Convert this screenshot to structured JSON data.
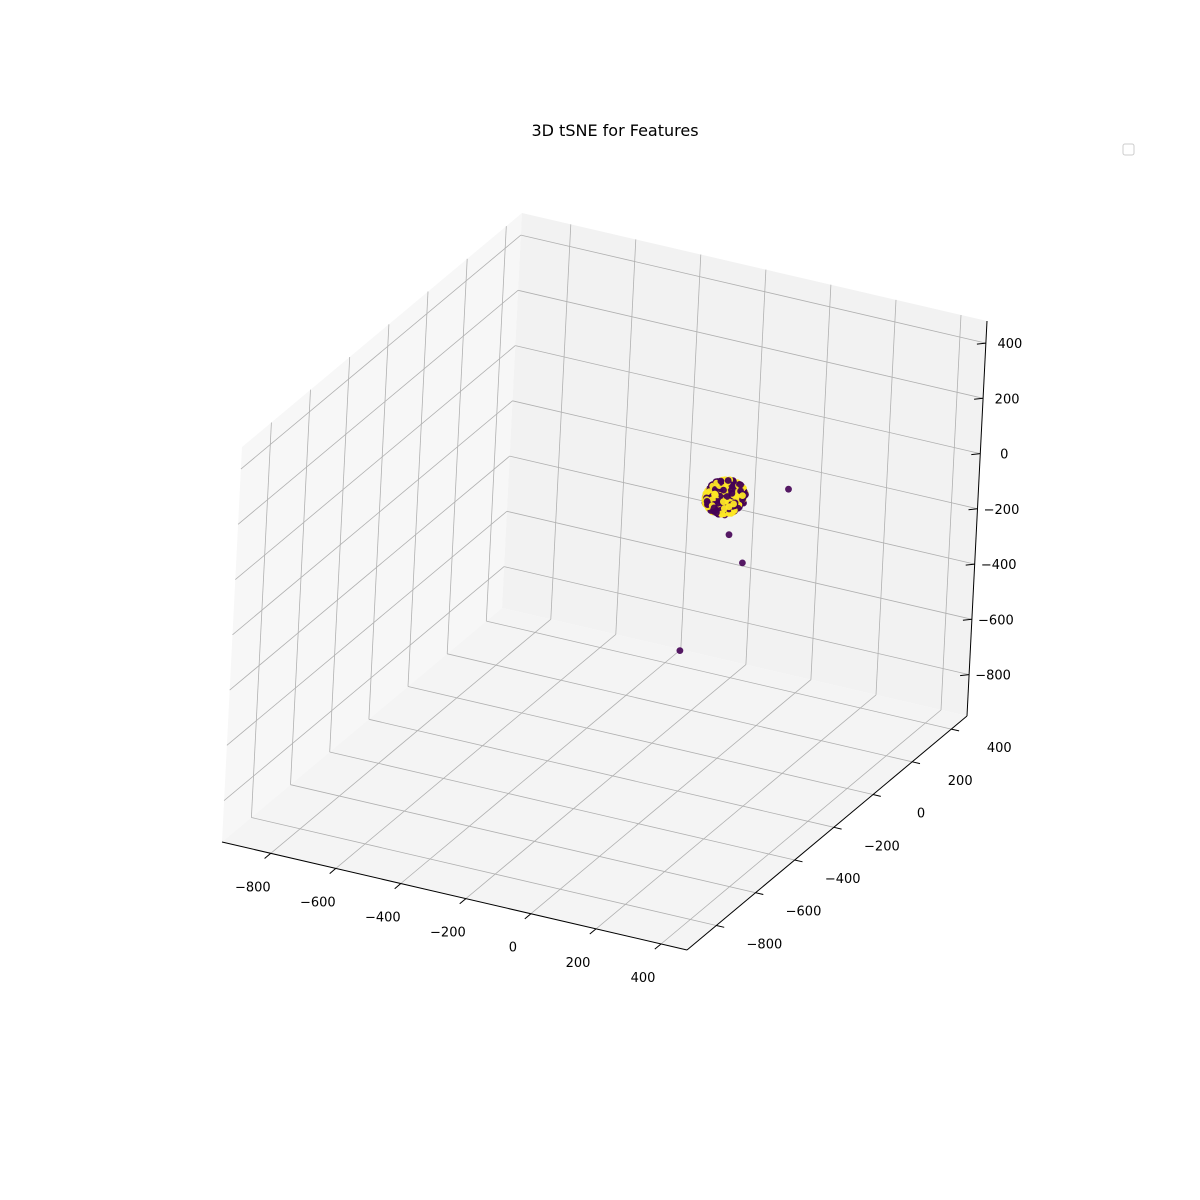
{
  "chart_data": {
    "type": "scatter",
    "projection": "3d",
    "title": "3D tSNE for Features",
    "xlabel": "",
    "ylabel": "",
    "zlabel": "",
    "xlim": [
      -950,
      480
    ],
    "ylim": [
      -950,
      480
    ],
    "zlim": [
      -950,
      480
    ],
    "x_ticks": [
      -800,
      -600,
      -400,
      -200,
      0,
      200,
      400
    ],
    "y_ticks": [
      -800,
      -600,
      -400,
      -200,
      0,
      200,
      400
    ],
    "z_ticks": [
      -800,
      -600,
      -400,
      -200,
      0,
      200,
      400
    ],
    "x_tick_labels": [
      "−800",
      "−600",
      "−400",
      "−200",
      "0",
      "200",
      "400"
    ],
    "y_tick_labels": [
      "−800",
      "−600",
      "−400",
      "−200",
      "0",
      "200",
      "400"
    ],
    "z_tick_labels": [
      "−800",
      "−600",
      "−400",
      "−200",
      "0",
      "200",
      "400"
    ],
    "grid": true,
    "legend": "top-right",
    "colors": {
      "class_0": "#440154",
      "class_1": "#fde725",
      "pane_left": "#f7f7f7",
      "pane_right": "#f2f2f2",
      "pane_floor": "#f4f4f4",
      "grid": "#b0b0b0"
    },
    "cluster": {
      "center": [
        -37,
        37,
        -37
      ],
      "radius": 55,
      "count": 420,
      "classes": [
        0,
        1
      ]
    },
    "outliers": [
      {
        "x": 290,
        "y": -200,
        "z": 222,
        "class": 0
      },
      {
        "x": 150,
        "y": -180,
        "z": -95,
        "class": 0
      },
      {
        "x": 25,
        "y": -40,
        "z": -110,
        "class": 0
      },
      {
        "x": -300,
        "y": 300,
        "z": -820,
        "class": 0
      }
    ]
  }
}
